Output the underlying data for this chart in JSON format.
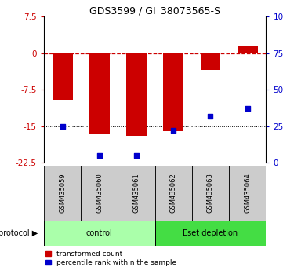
{
  "title": "GDS3599 / GI_38073565-S",
  "samples": [
    "GSM435059",
    "GSM435060",
    "GSM435061",
    "GSM435062",
    "GSM435063",
    "GSM435064"
  ],
  "red_values": [
    -9.5,
    -16.5,
    -17.0,
    -16.0,
    -3.5,
    1.5
  ],
  "blue_values_pct": [
    25,
    5,
    5,
    22,
    32,
    37
  ],
  "ylim_left": [
    -22.5,
    7.5
  ],
  "ylim_right": [
    0,
    100
  ],
  "yticks_left": [
    7.5,
    0,
    -7.5,
    -15,
    -22.5
  ],
  "yticks_right": [
    100,
    75,
    50,
    25,
    0
  ],
  "hlines": [
    -7.5,
    -15.0
  ],
  "protocol_groups": [
    {
      "label": "control",
      "start": 0,
      "end": 3,
      "color": "#aaffaa"
    },
    {
      "label": "Eset depletion",
      "start": 3,
      "end": 6,
      "color": "#44dd44"
    }
  ],
  "red_color": "#CC0000",
  "blue_color": "#0000CC",
  "bar_width": 0.55,
  "legend_red": "transformed count",
  "legend_blue": "percentile rank within the sample",
  "protocol_label": "protocol",
  "background_color": "#ffffff",
  "label_bg": "#cccccc",
  "label_fontsize": 6.0,
  "title_fontsize": 9,
  "tick_fontsize": 7.5
}
